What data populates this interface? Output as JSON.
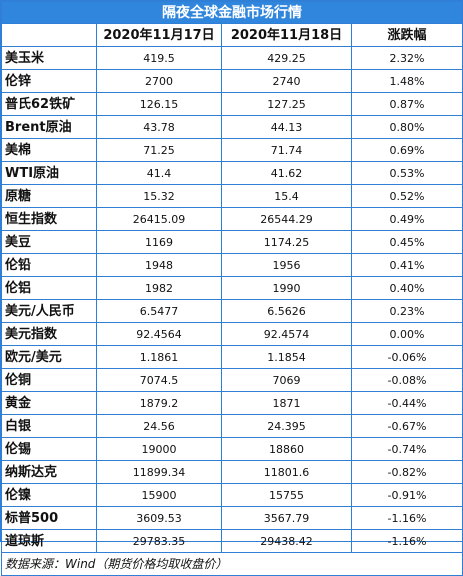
{
  "title": "隔夜全球金融市场行情",
  "headers": [
    "",
    "2020年11月17日",
    "2020年11月18日",
    "涨跌幅"
  ],
  "rows": [
    {
      "name": "美玉米",
      "d1": "419.5",
      "d2": "429.25",
      "chg": "2.32%"
    },
    {
      "name": "伦锌",
      "d1": "2700",
      "d2": "2740",
      "chg": "1.48%"
    },
    {
      "name": "普氏62铁矿",
      "d1": "126.15",
      "d2": "127.25",
      "chg": "0.87%"
    },
    {
      "name": "Brent原油",
      "d1": "43.78",
      "d2": "44.13",
      "chg": "0.80%"
    },
    {
      "name": "美棉",
      "d1": "71.25",
      "d2": "71.74",
      "chg": "0.69%"
    },
    {
      "name": "WTI原油",
      "d1": "41.4",
      "d2": "41.62",
      "chg": "0.53%"
    },
    {
      "name": "原糖",
      "d1": "15.32",
      "d2": "15.4",
      "chg": "0.52%"
    },
    {
      "name": "恒生指数",
      "d1": "26415.09",
      "d2": "26544.29",
      "chg": "0.49%"
    },
    {
      "name": "美豆",
      "d1": "1169",
      "d2": "1174.25",
      "chg": "0.45%"
    },
    {
      "name": "伦铅",
      "d1": "1948",
      "d2": "1956",
      "chg": "0.41%"
    },
    {
      "name": "伦铝",
      "d1": "1982",
      "d2": "1990",
      "chg": "0.40%"
    },
    {
      "name": "美元/人民币",
      "d1": "6.5477",
      "d2": "6.5626",
      "chg": "0.23%"
    },
    {
      "name": "美元指数",
      "d1": "92.4564",
      "d2": "92.4574",
      "chg": "0.00%"
    },
    {
      "name": "欧元/美元",
      "d1": "1.1861",
      "d2": "1.1854",
      "chg": "-0.06%"
    },
    {
      "name": "伦铜",
      "d1": "7074.5",
      "d2": "7069",
      "chg": "-0.08%"
    },
    {
      "name": "黄金",
      "d1": "1879.2",
      "d2": "1871",
      "chg": "-0.44%"
    },
    {
      "name": "白银",
      "d1": "24.56",
      "d2": "24.395",
      "chg": "-0.67%"
    },
    {
      "name": "伦锡",
      "d1": "19000",
      "d2": "18860",
      "chg": "-0.74%"
    },
    {
      "name": "纳斯达克",
      "d1": "11899.34",
      "d2": "11801.6",
      "chg": "-0.82%"
    },
    {
      "name": "伦镍",
      "d1": "15900",
      "d2": "15755",
      "chg": "-0.91%"
    },
    {
      "name": "标普500",
      "d1": "3609.53",
      "d2": "3567.79",
      "chg": "-1.16%"
    },
    {
      "name": "道琼斯",
      "d1": "29783.35",
      "d2": "29438.42",
      "chg": "-1.16%"
    }
  ],
  "footer": "数据来源：Wind（期货价格均取收盘价）",
  "colors": {
    "border": "#2f7fd6",
    "title_bg": "#2f86dc",
    "title_text": "#ffffff"
  }
}
